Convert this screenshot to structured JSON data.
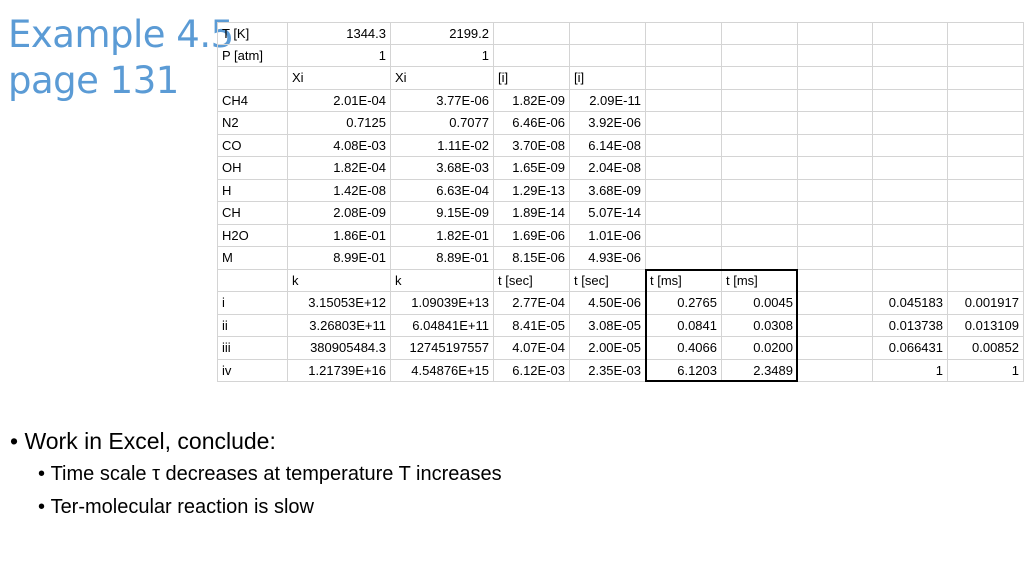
{
  "title": [
    "Example 4.5",
    "page 131"
  ],
  "table": {
    "rows": [
      [
        "T [K]",
        "1344.3",
        "2199.2",
        null,
        null,
        null,
        null,
        null,
        null,
        null
      ],
      [
        "P [atm]",
        "1",
        "1",
        null,
        null,
        null,
        null,
        null,
        null,
        null
      ],
      [
        null,
        "Xi",
        "Xi",
        "[i]",
        "[i]",
        null,
        null,
        null,
        null,
        null
      ],
      [
        "CH4",
        "2.01E-04",
        "3.77E-06",
        "1.82E-09",
        "2.09E-11",
        null,
        null,
        null,
        null,
        null
      ],
      [
        "N2",
        "0.7125",
        "0.7077",
        "6.46E-06",
        "3.92E-06",
        null,
        null,
        null,
        null,
        null
      ],
      [
        "CO",
        "4.08E-03",
        "1.11E-02",
        "3.70E-08",
        "6.14E-08",
        null,
        null,
        null,
        null,
        null
      ],
      [
        "OH",
        "1.82E-04",
        "3.68E-03",
        "1.65E-09",
        "2.04E-08",
        null,
        null,
        null,
        null,
        null
      ],
      [
        "H",
        "1.42E-08",
        "6.63E-04",
        "1.29E-13",
        "3.68E-09",
        null,
        null,
        null,
        null,
        null
      ],
      [
        "CH",
        "2.08E-09",
        "9.15E-09",
        "1.89E-14",
        "5.07E-14",
        null,
        null,
        null,
        null,
        null
      ],
      [
        "H2O",
        "1.86E-01",
        "1.82E-01",
        "1.69E-06",
        "1.01E-06",
        null,
        null,
        null,
        null,
        null
      ],
      [
        "M",
        "8.99E-01",
        "8.89E-01",
        "8.15E-06",
        "4.93E-06",
        null,
        null,
        null,
        null,
        null
      ],
      [
        null,
        "k",
        "k",
        "t [sec]",
        "t [sec]",
        "t [ms]",
        "t [ms]",
        null,
        null,
        null
      ],
      [
        "i",
        "3.15053E+12",
        "1.09039E+13",
        "2.77E-04",
        "4.50E-06",
        "0.2765",
        "0.0045",
        null,
        "0.045183",
        "0.001917"
      ],
      [
        "ii",
        "3.26803E+11",
        "6.04841E+11",
        "8.41E-05",
        "3.08E-05",
        "0.0841",
        "0.0308",
        null,
        "0.013738",
        "0.013109"
      ],
      [
        "iii",
        "380905484.3",
        "12745197557",
        "4.07E-04",
        "2.00E-05",
        "0.4066",
        "0.0200",
        null,
        "0.066431",
        "0.00852"
      ],
      [
        "iv",
        "1.21739E+16",
        "4.54876E+15",
        "6.12E-03",
        "2.35E-03",
        "6.1203",
        "2.3489",
        null,
        "1",
        "1"
      ]
    ]
  },
  "bullets": [
    {
      "text": "Work in Excel, conclude:",
      "sub": [
        "Time scale τ decreases at temperature T increases",
        "Ter-molecular reaction is slow"
      ]
    }
  ]
}
